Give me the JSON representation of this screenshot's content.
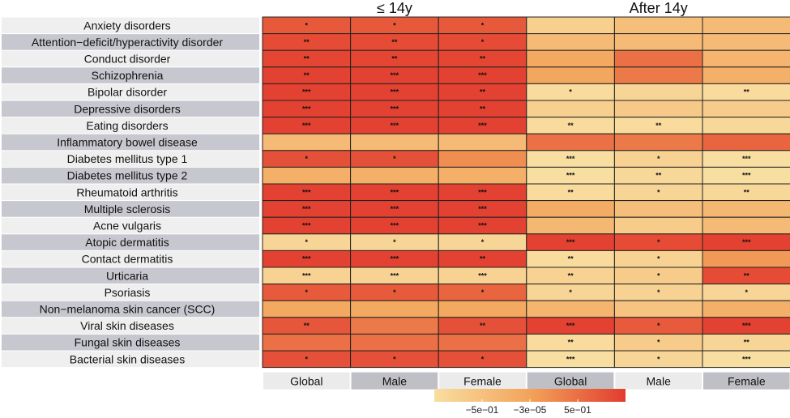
{
  "chart_data": {
    "type": "heatmap",
    "group_headers": [
      "≤ 14y",
      "After 14y"
    ],
    "rows": [
      "Anxiety disorders",
      "Attention−deficit/hyperactivity disorder",
      "Conduct disorder",
      "Schizophrenia",
      "Bipolar disorder",
      "Depressive disorders",
      "Eating disorders",
      "Inflammatory bowel disease",
      "Diabetes mellitus type 1",
      "Diabetes mellitus type 2",
      "Rheumatoid arthritis",
      "Multiple sclerosis",
      "Acne vulgaris",
      "Atopic dermatitis",
      "Contact dermatitis",
      "Urticaria",
      "Psoriasis",
      "Non−melanoma skin cancer (SCC)",
      "Viral skin diseases",
      "Fungal skin diseases",
      "Bacterial skin diseases"
    ],
    "columns": [
      "Global",
      "Male",
      "Female",
      "Global",
      "Male",
      "Female"
    ],
    "values": [
      [
        0.72,
        0.72,
        0.72,
        -0.75,
        -0.45,
        -0.4
      ],
      [
        0.85,
        0.85,
        0.85,
        -0.4,
        -0.4,
        -0.4
      ],
      [
        0.9,
        0.9,
        0.9,
        -0.1,
        0.5,
        -0.3
      ],
      [
        0.95,
        0.95,
        0.95,
        -0.05,
        0.4,
        -0.2
      ],
      [
        0.95,
        0.95,
        0.95,
        -0.95,
        -0.85,
        -0.95
      ],
      [
        0.95,
        0.95,
        0.95,
        -0.75,
        -0.65,
        -0.7
      ],
      [
        0.95,
        0.95,
        0.95,
        -0.95,
        -0.95,
        -0.9
      ],
      [
        -0.4,
        -0.4,
        -0.4,
        0.5,
        0.4,
        0.6
      ],
      [
        0.8,
        0.8,
        0.2,
        -1.0,
        -0.8,
        -1.0
      ],
      [
        -0.2,
        -0.2,
        -0.2,
        -1.0,
        -0.9,
        -1.0
      ],
      [
        0.95,
        0.95,
        0.95,
        -0.95,
        -0.85,
        -0.9
      ],
      [
        0.95,
        0.95,
        0.95,
        -0.15,
        -0.45,
        -0.35
      ],
      [
        0.95,
        0.95,
        0.95,
        -0.35,
        -0.7,
        -0.4
      ],
      [
        -0.85,
        -0.85,
        -0.85,
        0.95,
        0.85,
        0.95
      ],
      [
        0.95,
        0.95,
        0.95,
        -0.95,
        -0.8,
        0.1
      ],
      [
        -0.8,
        -0.8,
        -0.8,
        -0.8,
        -0.7,
        0.85
      ],
      [
        0.7,
        0.7,
        0.6,
        -0.85,
        -0.8,
        -0.85
      ],
      [
        -0.1,
        -0.1,
        -0.1,
        -0.3,
        -0.55,
        -0.2
      ],
      [
        0.75,
        0.4,
        0.8,
        0.95,
        0.7,
        0.95
      ],
      [
        0.5,
        0.5,
        0.5,
        -0.95,
        -0.7,
        -0.85
      ],
      [
        0.8,
        0.8,
        0.8,
        -1.0,
        -0.85,
        -1.0
      ]
    ],
    "annotations": [
      [
        "*",
        "*",
        "*",
        "",
        "",
        ""
      ],
      [
        "**",
        "**",
        "*",
        "",
        "",
        ""
      ],
      [
        "**",
        "**",
        "**",
        "",
        "",
        ""
      ],
      [
        "**",
        "***",
        "***",
        "",
        "",
        ""
      ],
      [
        "***",
        "***",
        "**",
        "*",
        "",
        "**"
      ],
      [
        "***",
        "***",
        "**",
        "",
        "",
        ""
      ],
      [
        "***",
        "***",
        "***",
        "**",
        "**",
        ""
      ],
      [
        "",
        "",
        "",
        "",
        "",
        ""
      ],
      [
        "*",
        "*",
        "",
        "***",
        "*",
        "***"
      ],
      [
        "",
        "",
        "",
        "***",
        "**",
        "***"
      ],
      [
        "***",
        "***",
        "***",
        "**",
        "*",
        "**"
      ],
      [
        "***",
        "***",
        "***",
        "",
        "",
        ""
      ],
      [
        "***",
        "***",
        "***",
        "",
        "",
        ""
      ],
      [
        "*",
        "*",
        "*",
        "***",
        "*",
        "***"
      ],
      [
        "***",
        "***",
        "**",
        "**",
        "*",
        ""
      ],
      [
        "***",
        "***",
        "***",
        "**",
        "*",
        "**"
      ],
      [
        "*",
        "*",
        "*",
        "*",
        "*",
        "*"
      ],
      [
        "",
        "",
        "",
        "",
        "",
        ""
      ],
      [
        "**",
        "",
        "**",
        "***",
        "*",
        "***"
      ],
      [
        "",
        "",
        "",
        "**",
        "*",
        "**"
      ],
      [
        "*",
        "*",
        "*",
        "***",
        "*",
        "***"
      ]
    ],
    "colorbar": {
      "range": [
        -1,
        1
      ],
      "ticks": [
        -0.5,
        -3e-05,
        0.5
      ],
      "tick_labels": [
        "−5e−01",
        "−3e−05",
        "5e−01"
      ]
    },
    "colors": {
      "low": "#f8dea0",
      "mid": "#f3a35a",
      "high": "#e23c2f",
      "row_band_light": "#efefef",
      "row_band_dark": "#c7c7cf",
      "col_label_light": "#ebebeb",
      "col_label_dark": "#bfbfc6",
      "cell_border": "#222222"
    },
    "grid": false,
    "legend_position": "bottom"
  }
}
